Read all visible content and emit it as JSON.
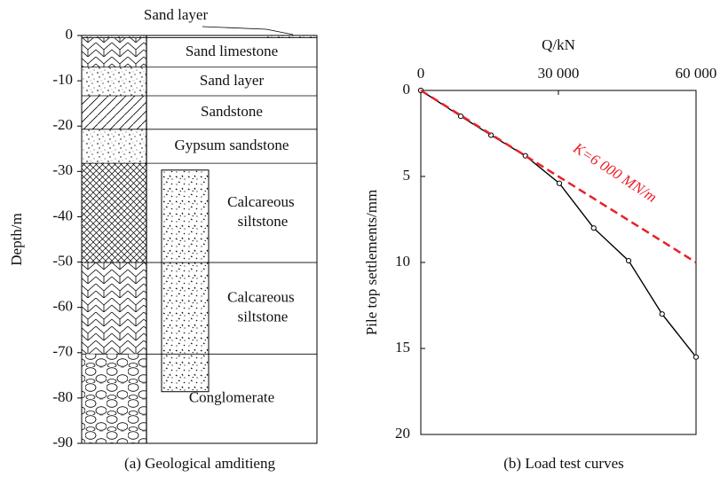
{
  "chart_data": [
    {
      "type": "column",
      "ylabel": "Depth/m",
      "ylim": [
        -90,
        0
      ],
      "yticks": [
        0,
        -10,
        -20,
        -30,
        -40,
        -50,
        -60,
        -70,
        -80,
        -90
      ],
      "caption": "(a) Geological amditieng",
      "layers": [
        {
          "name": "Sand layer",
          "top": 0,
          "bottom": -0.5,
          "pattern": "sand",
          "label_position": "above"
        },
        {
          "name": "Sand limestone",
          "top": -0.5,
          "bottom": -7,
          "pattern": "limestone"
        },
        {
          "name": "Sand layer",
          "top": -7,
          "bottom": -13.3,
          "pattern": "sand"
        },
        {
          "name": "Sandstone",
          "top": -13.3,
          "bottom": -20.7,
          "pattern": "sandstone"
        },
        {
          "name": "Gypsum sandstone",
          "top": -20.7,
          "bottom": -28.2,
          "pattern": "sand"
        },
        {
          "name": "Calcareous siltstone",
          "top": -28.2,
          "bottom": -50.1,
          "pattern": "crosshatch"
        },
        {
          "name": "Calcareous siltstone",
          "top": -50.1,
          "bottom": -70.3,
          "pattern": "limestone"
        },
        {
          "name": "Conglomerate",
          "top": -70.3,
          "bottom": -90,
          "pattern": "conglomerate"
        }
      ],
      "pile": {
        "top": -29.7,
        "bottom": -78.6
      }
    },
    {
      "type": "line",
      "xlabel": "Q/kN",
      "ylabel": "Pile top settlements/mm",
      "caption": "(b) Load test curves",
      "xlim": [
        0,
        60000
      ],
      "xticks": [
        0,
        {
          "value": 30000,
          "label": "30 000"
        },
        {
          "value": 60000,
          "label": "60 000"
        }
      ],
      "ylim": [
        0,
        20
      ],
      "yticks": [
        0,
        5,
        10,
        15,
        20
      ],
      "y_inverted": true,
      "x_axis_position": "top",
      "series": [
        {
          "color": "#000000",
          "markers": true,
          "x": [
            0,
            8700,
            15300,
            22800,
            30200,
            37700,
            45300,
            52600,
            60000
          ],
          "values": [
            0,
            1.5,
            2.6,
            3.8,
            5.4,
            8.0,
            9.9,
            13.0,
            15.5
          ]
        },
        {
          "color": "#e8212a",
          "dashed": true,
          "x": [
            0,
            60000
          ],
          "values": [
            0,
            10
          ]
        }
      ],
      "annotation": "K=6 000 MN/m"
    }
  ]
}
